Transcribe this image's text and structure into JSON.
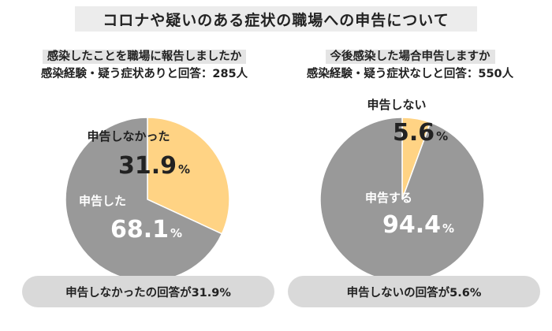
{
  "title": "コロナや疑いのある症状の職場への申告について",
  "chart_data": [
    {
      "type": "pie",
      "question": "感染したことを職場に報告しましたか",
      "subtitle": "感染経験・疑う症状ありと回答：285人",
      "slices": [
        {
          "label": "申告しなかった",
          "value": 31.9,
          "color": "#ffd384"
        },
        {
          "label": "申告した",
          "value": 68.1,
          "color": "#999999"
        }
      ],
      "unit": "%",
      "summary": "申告しなかったの回答が31.9%"
    },
    {
      "type": "pie",
      "question": "今後感染した場合申告しますか",
      "subtitle": "感染経験・疑う症状なしと回答：550人",
      "slices": [
        {
          "label": "申告しない",
          "value": 5.6,
          "color": "#ffd384"
        },
        {
          "label": "申告する",
          "value": 94.4,
          "color": "#999999"
        }
      ],
      "unit": "%",
      "summary": "申告しないの回答が5.6%"
    }
  ]
}
